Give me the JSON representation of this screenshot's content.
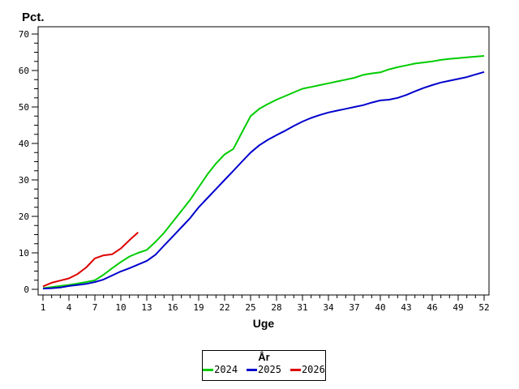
{
  "chart_data": {
    "type": "line",
    "grid": false,
    "frame_color": "#000000",
    "background": "#FFFFFF",
    "x_axis": {
      "label": "Uge",
      "range": [
        1,
        52
      ],
      "ticks_major": [
        1,
        4,
        7,
        10,
        13,
        16,
        19,
        22,
        25,
        28,
        31,
        34,
        37,
        40,
        43,
        46,
        49,
        52
      ],
      "minor_step": 1
    },
    "y_axis": {
      "label": "Pct.",
      "range": [
        0,
        70
      ],
      "ticks_major": [
        0,
        10,
        20,
        30,
        40,
        50,
        60,
        70
      ],
      "minor_step": 2.5
    },
    "legend": {
      "title": "År",
      "position": "bottom-center",
      "entries": [
        "2024",
        "2025",
        "2026"
      ]
    },
    "series": [
      {
        "name": "2024",
        "color": "#00CC00",
        "x": [
          1,
          2,
          3,
          4,
          5,
          6,
          7,
          8,
          9,
          10,
          11,
          12,
          13,
          14,
          15,
          16,
          17,
          18,
          19,
          20,
          21,
          22,
          23,
          24,
          25,
          26,
          27,
          28,
          29,
          30,
          31,
          32,
          33,
          34,
          35,
          36,
          37,
          38,
          39,
          40,
          41,
          42,
          43,
          44,
          45,
          46,
          47,
          48,
          49,
          50,
          51,
          52
        ],
        "y": [
          0.3,
          0.6,
          0.9,
          1.2,
          1.6,
          2.0,
          2.5,
          4.0,
          5.8,
          7.5,
          9.0,
          10.0,
          10.8,
          13.0,
          15.5,
          18.5,
          21.5,
          24.5,
          28.0,
          31.5,
          34.5,
          37.0,
          38.5,
          43.0,
          47.5,
          49.5,
          50.8,
          52.0,
          53.0,
          54.0,
          55.0,
          55.5,
          56.0,
          56.5,
          57.0,
          57.5,
          58.0,
          58.8,
          59.2,
          59.5,
          60.3,
          60.9,
          61.4,
          61.9,
          62.2,
          62.5,
          62.9,
          63.2,
          63.4,
          63.6,
          63.8,
          64.0
        ]
      },
      {
        "name": "2025",
        "color": "#0000CC",
        "x": [
          1,
          2,
          3,
          4,
          5,
          6,
          7,
          8,
          9,
          10,
          11,
          12,
          13,
          14,
          15,
          16,
          17,
          18,
          19,
          20,
          21,
          22,
          23,
          24,
          25,
          26,
          27,
          28,
          29,
          30,
          31,
          32,
          33,
          34,
          35,
          36,
          37,
          38,
          39,
          40,
          41,
          42,
          43,
          44,
          45,
          46,
          47,
          48,
          49,
          50,
          51,
          52
        ],
        "y": [
          0.2,
          0.3,
          0.5,
          0.9,
          1.2,
          1.5,
          2.0,
          2.7,
          3.8,
          4.9,
          5.8,
          6.8,
          7.8,
          9.5,
          12.0,
          14.5,
          17.0,
          19.5,
          22.5,
          25.0,
          27.5,
          30.0,
          32.5,
          35.0,
          37.5,
          39.5,
          41.0,
          42.3,
          43.5,
          44.8,
          46.0,
          47.0,
          47.8,
          48.5,
          49.0,
          49.5,
          50.0,
          50.5,
          51.2,
          51.8,
          52.0,
          52.5,
          53.3,
          54.3,
          55.2,
          56.0,
          56.7,
          57.2,
          57.7,
          58.2,
          58.9,
          59.6
        ]
      },
      {
        "name": "2026",
        "color": "#DD0000",
        "x": [
          1,
          2,
          3,
          4,
          5,
          6,
          7,
          8,
          9,
          10,
          11,
          12
        ],
        "y": [
          0.8,
          1.8,
          2.4,
          3.0,
          4.2,
          6.0,
          8.5,
          9.3,
          9.6,
          11.2,
          13.5,
          15.6
        ]
      }
    ]
  }
}
